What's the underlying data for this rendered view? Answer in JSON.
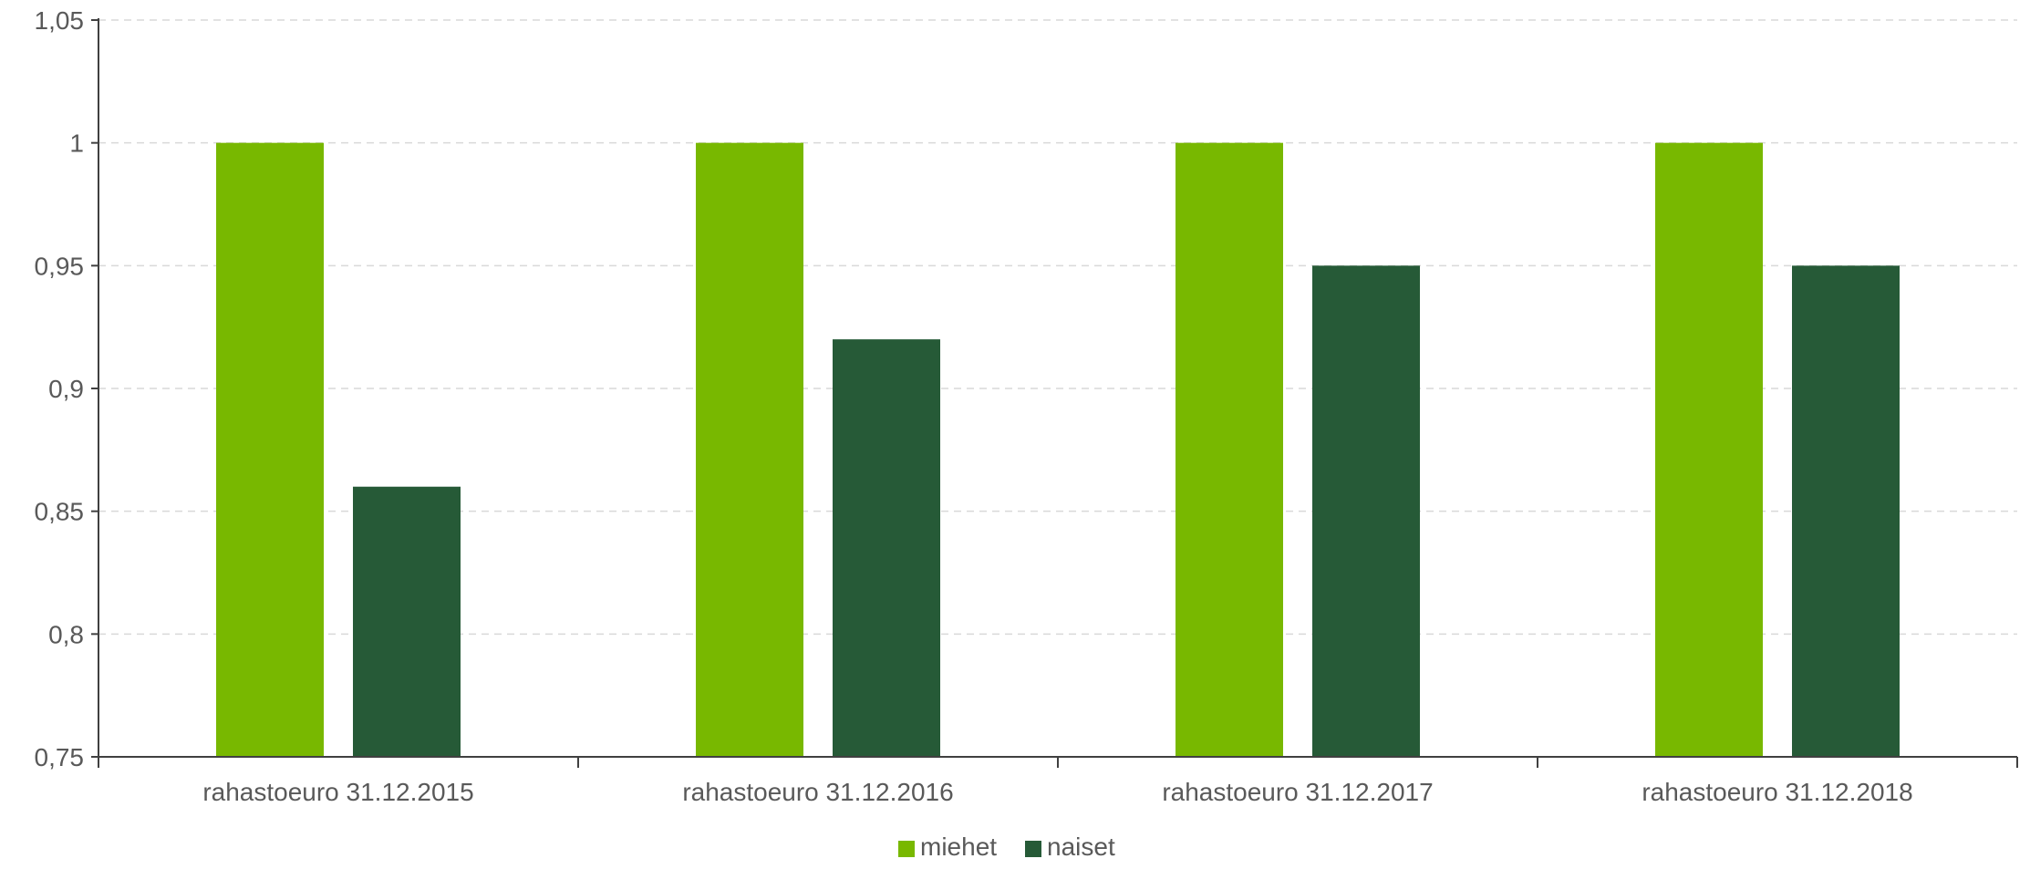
{
  "chart_data": {
    "type": "bar",
    "title": "",
    "xlabel": "",
    "ylabel": "",
    "categories": [
      "rahastoeuro 31.12.2015",
      "rahastoeuro 31.12.2016",
      "rahastoeuro 31.12.2017",
      "rahastoeuro 31.12.2018"
    ],
    "series": [
      {
        "name": "miehet",
        "color": "#78b800",
        "values": [
          1,
          1,
          1,
          1
        ]
      },
      {
        "name": "naiset",
        "color": "#265a37",
        "values": [
          0.86,
          0.92,
          0.95,
          0.95
        ]
      }
    ],
    "ylim": [
      0.75,
      1.05
    ],
    "yticks": [
      0.75,
      0.8,
      0.85,
      0.9,
      0.95,
      1,
      1.05
    ],
    "ytick_labels": [
      "0,75",
      "0,8",
      "0,85",
      "0,9",
      "0,95",
      "1",
      "1,05"
    ],
    "grid": true,
    "legend": "bottom-center"
  }
}
